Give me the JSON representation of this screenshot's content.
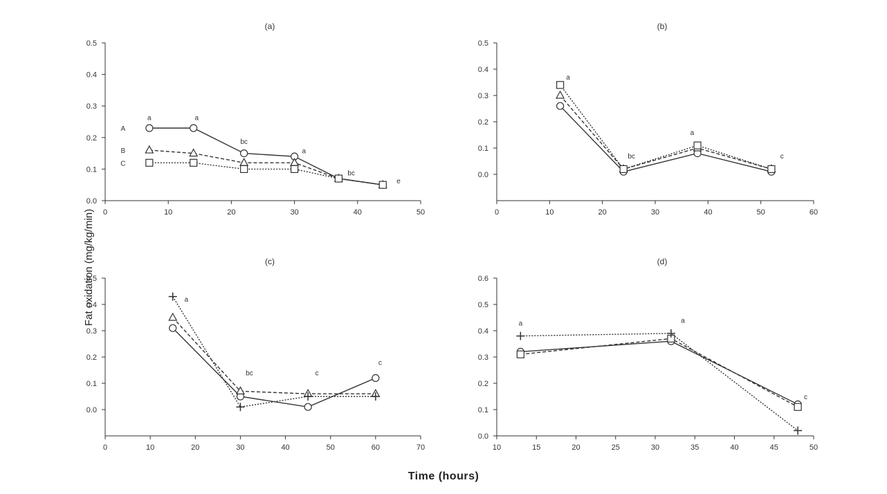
{
  "figure": {
    "ylabel": "Fat oxidation (mg/kg/min)",
    "xlabel": "Time (hours)"
  },
  "chart_data": [
    {
      "type": "line",
      "title": "(a)",
      "xlim": [
        0,
        50
      ],
      "ylim": [
        0.0,
        0.5
      ],
      "xticks": [
        0,
        10,
        20,
        30,
        40,
        50
      ],
      "yticks": [
        0.0,
        0.1,
        0.2,
        0.3,
        0.4,
        0.5
      ],
      "ytick_labels": [
        "0.0",
        "0.1",
        "0.2",
        "0.3",
        "0.4",
        "0.5"
      ],
      "series": [
        {
          "name": "A",
          "marker": "circle",
          "x": [
            7,
            14,
            22,
            30,
            37,
            44
          ],
          "y": [
            0.23,
            0.23,
            0.15,
            0.14,
            0.07,
            0.05
          ]
        },
        {
          "name": "B",
          "marker": "triangle",
          "x": [
            7,
            14,
            22,
            30,
            37,
            44
          ],
          "y": [
            0.16,
            0.15,
            0.12,
            0.12,
            0.07,
            0.05
          ]
        },
        {
          "name": "C",
          "marker": "square",
          "x": [
            7,
            14,
            22,
            30,
            37,
            44
          ],
          "y": [
            0.12,
            0.12,
            0.1,
            0.1,
            0.07,
            0.05
          ]
        }
      ],
      "annotations": [
        {
          "text": "a",
          "x": 7,
          "y": 0.255
        },
        {
          "text": "a",
          "x": 14.5,
          "y": 0.255
        },
        {
          "text": "bc",
          "x": 22,
          "y": 0.18
        },
        {
          "text": "a",
          "x": 31.5,
          "y": 0.15
        },
        {
          "text": "bc",
          "x": 39,
          "y": 0.08
        },
        {
          "text": "e",
          "x": 46.5,
          "y": 0.055
        }
      ]
    },
    {
      "type": "line",
      "title": "(b)",
      "xlim": [
        0,
        60
      ],
      "ylim": [
        -0.1,
        0.5
      ],
      "xticks": [
        0,
        10,
        20,
        30,
        40,
        50,
        60
      ],
      "yticks": [
        0.0,
        0.1,
        0.2,
        0.3,
        0.4,
        0.5
      ],
      "ytick_labels": [
        "0.0",
        "0.1",
        "0.2",
        "0.3",
        "0.4",
        "0.5"
      ],
      "series": [
        {
          "name": "",
          "marker": "circle",
          "x": [
            12,
            24,
            38,
            52
          ],
          "y": [
            0.26,
            0.01,
            0.08,
            0.01
          ]
        },
        {
          "name": "",
          "marker": "triangle",
          "x": [
            12,
            24,
            38,
            52
          ],
          "y": [
            0.3,
            0.02,
            0.1,
            0.02
          ]
        },
        {
          "name": "",
          "marker": "square",
          "x": [
            12,
            24,
            38,
            52
          ],
          "y": [
            0.34,
            0.02,
            0.11,
            0.02
          ]
        }
      ],
      "annotations": [
        {
          "text": "a",
          "x": 13.5,
          "y": 0.36
        },
        {
          "text": "bc",
          "x": 25.5,
          "y": 0.06
        },
        {
          "text": "a",
          "x": 37,
          "y": 0.15
        },
        {
          "text": "c",
          "x": 54,
          "y": 0.06
        }
      ]
    },
    {
      "type": "line",
      "title": "(c)",
      "xlim": [
        0,
        70
      ],
      "ylim": [
        -0.1,
        0.5
      ],
      "xticks": [
        0,
        10,
        20,
        30,
        40,
        50,
        60,
        70
      ],
      "yticks": [
        0.0,
        0.1,
        0.2,
        0.3,
        0.4,
        0.5
      ],
      "ytick_labels": [
        "0.0",
        "0.1",
        "0.2",
        "0.3",
        "0.4",
        "0.5"
      ],
      "series": [
        {
          "name": "",
          "marker": "circle",
          "x": [
            15,
            30,
            45,
            60
          ],
          "y": [
            0.31,
            0.05,
            0.01,
            0.12
          ]
        },
        {
          "name": "",
          "marker": "triangle",
          "x": [
            15,
            30,
            45,
            60
          ],
          "y": [
            0.35,
            0.07,
            0.06,
            0.06
          ]
        },
        {
          "name": "",
          "marker": "plus",
          "x": [
            15,
            30,
            45,
            60
          ],
          "y": [
            0.43,
            0.01,
            0.05,
            0.05
          ]
        }
      ],
      "annotations": [
        {
          "text": "a",
          "x": 18,
          "y": 0.41
        },
        {
          "text": "bc",
          "x": 32,
          "y": 0.13
        },
        {
          "text": "c",
          "x": 47,
          "y": 0.13
        },
        {
          "text": "c",
          "x": 61,
          "y": 0.17
        }
      ]
    },
    {
      "type": "line",
      "title": "(d)",
      "xlim": [
        10,
        50
      ],
      "ylim": [
        0.0,
        0.6
      ],
      "xticks": [
        10,
        15,
        20,
        25,
        30,
        35,
        40,
        45,
        50
      ],
      "yticks": [
        0.0,
        0.1,
        0.2,
        0.3,
        0.4,
        0.5,
        0.6
      ],
      "ytick_labels": [
        "0.0",
        "0.1",
        "0.2",
        "0.3",
        "0.4",
        "0.5",
        "0.6"
      ],
      "series": [
        {
          "name": "",
          "marker": "circle",
          "x": [
            13,
            32,
            48
          ],
          "y": [
            0.32,
            0.36,
            0.12
          ]
        },
        {
          "name": "",
          "marker": "square",
          "x": [
            13,
            32,
            48
          ],
          "y": [
            0.31,
            0.37,
            0.11
          ]
        },
        {
          "name": "",
          "marker": "plus",
          "x": [
            13,
            32,
            48
          ],
          "y": [
            0.38,
            0.39,
            0.02
          ]
        }
      ],
      "annotations": [
        {
          "text": "a",
          "x": 13,
          "y": 0.42
        },
        {
          "text": "a",
          "x": 33.5,
          "y": 0.43
        },
        {
          "text": "c",
          "x": 49,
          "y": 0.14
        }
      ]
    }
  ]
}
